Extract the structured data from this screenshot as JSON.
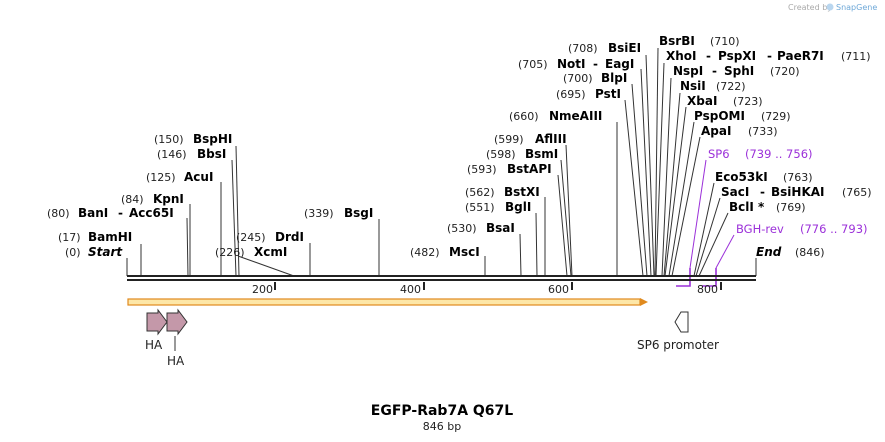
{
  "title": "EGFP-Rab7A Q67L",
  "length_label": "846 bp",
  "credit": "Created by",
  "brand": "SnapGene",
  "ticks": [
    "200",
    "400",
    "600",
    "800"
  ],
  "sites": [
    {
      "pos": "(0)",
      "name": "Start"
    },
    {
      "pos": "(17)",
      "name": "BamHI"
    },
    {
      "pos": "(80)",
      "name": "BanI",
      "sep": "-",
      "name2": "Acc65I"
    },
    {
      "pos": "(84)",
      "name": "KpnI"
    },
    {
      "pos": "(125)",
      "name": "AcuI"
    },
    {
      "pos": "(146)",
      "name": "BbsI"
    },
    {
      "pos": "(150)",
      "name": "BspHI"
    },
    {
      "pos": "(226)",
      "name": "XcmI"
    },
    {
      "pos": "(245)",
      "name": "DrdI"
    },
    {
      "pos": "(339)",
      "name": "BsgI"
    },
    {
      "pos": "(482)",
      "name": "MscI"
    },
    {
      "pos": "(530)",
      "name": "BsaI"
    },
    {
      "pos": "(551)",
      "name": "BglI"
    },
    {
      "pos": "(562)",
      "name": "BstXI"
    },
    {
      "pos": "(593)",
      "name": "BstAPI"
    },
    {
      "pos": "(598)",
      "name": "BsmI"
    },
    {
      "pos": "(599)",
      "name": "AflIII"
    },
    {
      "pos": "(660)",
      "name": "NmeAIII"
    },
    {
      "pos": "(695)",
      "name": "PstI"
    },
    {
      "pos": "(700)",
      "name": "BlpI"
    },
    {
      "pos": "(705)",
      "name": "NotI",
      "sep": "-",
      "name2": "EagI"
    },
    {
      "pos": "(708)",
      "name": "BsiEI"
    },
    {
      "pos": "(710)",
      "name": "BsrBI"
    },
    {
      "pos": "(711)",
      "name": "XhoI",
      "sep": "-",
      "name2": "PspXI",
      "sep2": "-",
      "name3": "PaeR7I"
    },
    {
      "pos": "(720)",
      "name": "NspI",
      "sep": "-",
      "name2": "SphI"
    },
    {
      "pos": "(722)",
      "name": "NsiI"
    },
    {
      "pos": "(723)",
      "name": "XbaI"
    },
    {
      "pos": "(729)",
      "name": "PspOMI"
    },
    {
      "pos": "(733)",
      "name": "ApaI"
    },
    {
      "pos": "(763)",
      "name": "Eco53kI"
    },
    {
      "pos": "(765)",
      "name": "SacI",
      "sep": "-",
      "name2": "BsiHKAI"
    },
    {
      "pos": "(769)",
      "name": "BclI *"
    },
    {
      "pos": "(846)",
      "name": "End"
    }
  ],
  "primers": [
    {
      "name": "SP6",
      "range": "(739 .. 756)"
    },
    {
      "name": "BGH-rev",
      "range": "(776 .. 793)"
    }
  ],
  "features": [
    {
      "name": "HA"
    },
    {
      "name": "HA"
    },
    {
      "name": "SP6 promoter"
    }
  ]
}
